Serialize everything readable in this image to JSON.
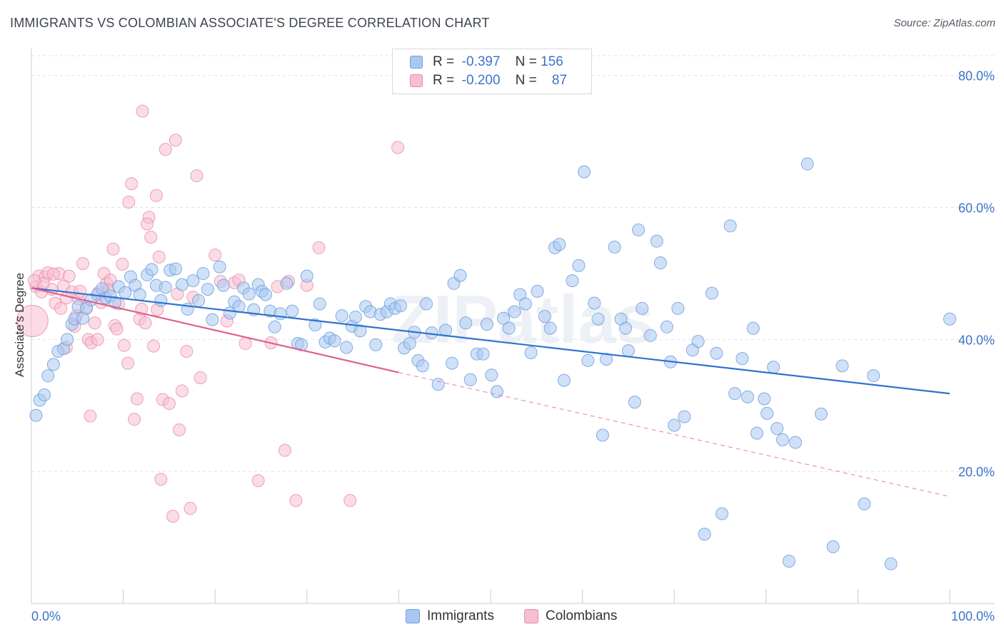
{
  "header": {
    "title": "IMMIGRANTS VS COLOMBIAN ASSOCIATE'S DEGREE CORRELATION CHART",
    "source": "Source: ZipAtlas.com"
  },
  "watermark": "ZIPatlas",
  "legend": {
    "rows": [
      {
        "r_label": "R =",
        "r_value": "-0.397",
        "n_label": "N =",
        "n_value": "156",
        "color": "#a9c8f0",
        "border": "#6f9fdf"
      },
      {
        "r_label": "R =",
        "r_value": "-0.200",
        "n_label": "N =",
        "n_value": "87",
        "color": "#f7bfd0",
        "border": "#e88aa8"
      }
    ]
  },
  "colors": {
    "immigrants_fill": "#a9c8f0",
    "immigrants_stroke": "#6f9fdf",
    "immigrants_line": "#2f72d0",
    "colombians_fill": "#f7bfd0",
    "colombians_stroke": "#e88aa8",
    "colombians_line": "#e0608e",
    "axis_text": "#3c74c9",
    "grid": "#dfe2e6"
  },
  "chart_data": {
    "type": "scatter",
    "title": "IMMIGRANTS VS COLOMBIAN ASSOCIATE'S DEGREE CORRELATION CHART",
    "xlabel": "",
    "ylabel": "Associate's Degree",
    "xlim": [
      0,
      100
    ],
    "ylim": [
      0,
      83
    ],
    "x_tick_labels": [
      "0.0%",
      "100.0%"
    ],
    "y_ticks": [
      20,
      40,
      60,
      80
    ],
    "y_tick_labels": [
      "20.0%",
      "40.0%",
      "60.0%",
      "80.0%"
    ],
    "grid": "horizontal dashed",
    "legend_position": "top-center and bottom",
    "series": [
      {
        "name": "Immigrants",
        "r": -0.397,
        "n": 156,
        "trend": {
          "x": [
            0,
            100
          ],
          "y": [
            47.8,
            31.8
          ]
        },
        "points": [
          [
            0.5,
            28.5
          ],
          [
            0.9,
            30.8
          ],
          [
            1.4,
            31.6
          ],
          [
            1.8,
            34.5
          ],
          [
            2.4,
            36.2
          ],
          [
            2.9,
            38.2
          ],
          [
            3.5,
            38.6
          ],
          [
            3.9,
            40.0
          ],
          [
            4.4,
            42.3
          ],
          [
            4.7,
            43.1
          ],
          [
            5.1,
            45.0
          ],
          [
            5.6,
            43.2
          ],
          [
            6.0,
            44.7
          ],
          [
            6.5,
            46.0
          ],
          [
            7.2,
            46.8
          ],
          [
            7.7,
            47.7
          ],
          [
            8.1,
            46.3
          ],
          [
            8.6,
            46.6
          ],
          [
            9.1,
            45.6
          ],
          [
            9.5,
            48.0
          ],
          [
            10.2,
            47.1
          ],
          [
            10.8,
            49.5
          ],
          [
            11.3,
            48.2
          ],
          [
            11.8,
            46.8
          ],
          [
            12.6,
            49.8
          ],
          [
            13.1,
            50.6
          ],
          [
            13.6,
            48.2
          ],
          [
            14.1,
            45.9
          ],
          [
            14.6,
            47.9
          ],
          [
            15.1,
            50.5
          ],
          [
            15.7,
            50.7
          ],
          [
            16.4,
            48.3
          ],
          [
            17.0,
            44.6
          ],
          [
            17.6,
            48.9
          ],
          [
            18.2,
            45.9
          ],
          [
            18.7,
            50.0
          ],
          [
            19.2,
            47.6
          ],
          [
            19.7,
            43.0
          ],
          [
            20.5,
            51.0
          ],
          [
            20.9,
            48.2
          ],
          [
            21.6,
            44.0
          ],
          [
            22.1,
            45.7
          ],
          [
            22.6,
            45.0
          ],
          [
            23.1,
            47.8
          ],
          [
            23.7,
            46.9
          ],
          [
            24.2,
            44.5
          ],
          [
            24.7,
            48.3
          ],
          [
            25.1,
            47.3
          ],
          [
            25.5,
            46.8
          ],
          [
            26.0,
            44.3
          ],
          [
            26.5,
            41.9
          ],
          [
            27.1,
            43.9
          ],
          [
            27.8,
            48.5
          ],
          [
            28.4,
            44.3
          ],
          [
            29.0,
            39.4
          ],
          [
            29.4,
            39.2
          ],
          [
            30.0,
            49.6
          ],
          [
            30.9,
            42.2
          ],
          [
            31.4,
            45.4
          ],
          [
            32.0,
            39.6
          ],
          [
            32.5,
            40.2
          ],
          [
            33.0,
            39.8
          ],
          [
            33.8,
            43.6
          ],
          [
            34.3,
            38.8
          ],
          [
            34.9,
            42.0
          ],
          [
            35.3,
            43.4
          ],
          [
            35.8,
            41.3
          ],
          [
            36.4,
            45.0
          ],
          [
            36.9,
            44.2
          ],
          [
            37.5,
            39.2
          ],
          [
            38.0,
            43.8
          ],
          [
            38.7,
            44.2
          ],
          [
            39.1,
            45.4
          ],
          [
            39.6,
            44.7
          ],
          [
            40.2,
            45.1
          ],
          [
            40.6,
            38.7
          ],
          [
            41.2,
            39.4
          ],
          [
            41.7,
            41.1
          ],
          [
            42.1,
            36.8
          ],
          [
            42.6,
            36.0
          ],
          [
            43.0,
            45.4
          ],
          [
            43.6,
            41.0
          ],
          [
            44.3,
            33.2
          ],
          [
            45.1,
            41.4
          ],
          [
            45.8,
            36.4
          ],
          [
            46.0,
            48.5
          ],
          [
            46.7,
            49.7
          ],
          [
            47.3,
            42.5
          ],
          [
            47.8,
            33.9
          ],
          [
            48.5,
            37.8
          ],
          [
            49.2,
            37.8
          ],
          [
            49.6,
            42.3
          ],
          [
            50.1,
            34.6
          ],
          [
            50.7,
            32.1
          ],
          [
            51.4,
            43.2
          ],
          [
            52.0,
            41.7
          ],
          [
            52.6,
            44.2
          ],
          [
            53.2,
            46.8
          ],
          [
            53.8,
            45.4
          ],
          [
            54.4,
            38.0
          ],
          [
            55.1,
            47.3
          ],
          [
            55.9,
            43.5
          ],
          [
            56.5,
            41.7
          ],
          [
            57.0,
            53.9
          ],
          [
            57.5,
            54.4
          ],
          [
            58.0,
            33.8
          ],
          [
            58.9,
            48.9
          ],
          [
            59.6,
            51.2
          ],
          [
            60.2,
            65.4
          ],
          [
            60.6,
            36.8
          ],
          [
            61.3,
            45.5
          ],
          [
            61.7,
            43.1
          ],
          [
            62.2,
            25.5
          ],
          [
            62.6,
            37.0
          ],
          [
            63.5,
            54.0
          ],
          [
            64.2,
            43.1
          ],
          [
            64.7,
            41.7
          ],
          [
            65.0,
            38.3
          ],
          [
            65.7,
            30.5
          ],
          [
            66.1,
            56.6
          ],
          [
            66.5,
            44.7
          ],
          [
            67.4,
            40.6
          ],
          [
            68.1,
            54.9
          ],
          [
            68.5,
            51.6
          ],
          [
            69.2,
            41.9
          ],
          [
            69.6,
            36.6
          ],
          [
            70.0,
            27.0
          ],
          [
            70.4,
            44.7
          ],
          [
            71.1,
            28.3
          ],
          [
            72.0,
            38.4
          ],
          [
            72.6,
            39.7
          ],
          [
            73.3,
            10.5
          ],
          [
            74.1,
            47.0
          ],
          [
            74.6,
            37.9
          ],
          [
            75.2,
            13.6
          ],
          [
            76.1,
            57.2
          ],
          [
            76.6,
            31.8
          ],
          [
            77.4,
            37.1
          ],
          [
            78.0,
            31.3
          ],
          [
            78.6,
            41.7
          ],
          [
            79.0,
            25.8
          ],
          [
            79.8,
            31.0
          ],
          [
            80.1,
            28.8
          ],
          [
            80.8,
            35.8
          ],
          [
            81.2,
            26.5
          ],
          [
            81.8,
            24.8
          ],
          [
            82.5,
            6.4
          ],
          [
            83.2,
            24.4
          ],
          [
            84.5,
            66.6
          ],
          [
            86.0,
            28.7
          ],
          [
            87.3,
            8.6
          ],
          [
            88.3,
            36.0
          ],
          [
            90.7,
            15.1
          ],
          [
            91.7,
            34.5
          ],
          [
            93.6,
            6.0
          ],
          [
            100.0,
            43.1
          ]
        ]
      },
      {
        "name": "Colombians",
        "r": -0.2,
        "n": 87,
        "trend_solid": {
          "x": [
            0,
            40
          ],
          "y": [
            47.8,
            35.0
          ]
        },
        "trend_dashed": {
          "x": [
            40,
            100
          ],
          "y": [
            35.0,
            16.2
          ]
        },
        "points": [
          [
            0.1,
            42.8
          ],
          [
            0.5,
            48.0
          ],
          [
            0.8,
            49.6
          ],
          [
            1.1,
            47.2
          ],
          [
            1.5,
            49.5
          ],
          [
            1.8,
            50.1
          ],
          [
            2.2,
            47.6
          ],
          [
            2.6,
            45.5
          ],
          [
            3.0,
            50.0
          ],
          [
            3.2,
            44.7
          ],
          [
            3.5,
            48.1
          ],
          [
            3.8,
            46.3
          ],
          [
            4.1,
            49.6
          ],
          [
            4.4,
            47.2
          ],
          [
            4.7,
            42.0
          ],
          [
            5.1,
            46.2
          ],
          [
            5.6,
            51.5
          ],
          [
            6.0,
            44.9
          ],
          [
            6.2,
            40.0
          ],
          [
            6.5,
            39.5
          ],
          [
            6.9,
            42.5
          ],
          [
            7.3,
            47.1
          ],
          [
            7.6,
            45.6
          ],
          [
            7.9,
            50.0
          ],
          [
            8.2,
            48.5
          ],
          [
            8.6,
            49.0
          ],
          [
            8.9,
            53.7
          ],
          [
            9.1,
            42.1
          ],
          [
            9.5,
            45.4
          ],
          [
            9.9,
            51.4
          ],
          [
            10.1,
            39.1
          ],
          [
            10.5,
            36.4
          ],
          [
            10.9,
            63.6
          ],
          [
            10.6,
            60.8
          ],
          [
            11.2,
            27.9
          ],
          [
            11.5,
            31.0
          ],
          [
            11.8,
            43.1
          ],
          [
            12.1,
            74.6
          ],
          [
            12.4,
            42.5
          ],
          [
            12.8,
            58.5
          ],
          [
            12.6,
            57.5
          ],
          [
            13.0,
            55.5
          ],
          [
            13.3,
            39.0
          ],
          [
            13.6,
            61.8
          ],
          [
            13.9,
            52.5
          ],
          [
            14.1,
            18.8
          ],
          [
            14.3,
            30.9
          ],
          [
            14.6,
            68.8
          ],
          [
            15.0,
            30.3
          ],
          [
            15.4,
            13.2
          ],
          [
            15.7,
            70.2
          ],
          [
            15.9,
            46.9
          ],
          [
            16.1,
            26.3
          ],
          [
            16.4,
            32.2
          ],
          [
            16.9,
            38.2
          ],
          [
            17.3,
            14.4
          ],
          [
            17.6,
            46.4
          ],
          [
            18.0,
            64.8
          ],
          [
            18.4,
            34.2
          ],
          [
            20.0,
            52.8
          ],
          [
            20.6,
            48.8
          ],
          [
            21.3,
            42.8
          ],
          [
            22.1,
            48.6
          ],
          [
            22.6,
            49.0
          ],
          [
            23.3,
            39.4
          ],
          [
            24.7,
            18.6
          ],
          [
            26.1,
            39.5
          ],
          [
            26.8,
            48.0
          ],
          [
            27.6,
            23.2
          ],
          [
            28.0,
            48.8
          ],
          [
            28.8,
            15.6
          ],
          [
            30.0,
            48.2
          ],
          [
            31.3,
            53.9
          ],
          [
            34.7,
            15.6
          ],
          [
            39.9,
            69.1
          ],
          [
            2.4,
            49.9
          ],
          [
            3.8,
            38.8
          ],
          [
            6.4,
            28.4
          ],
          [
            7.2,
            40.0
          ],
          [
            4.9,
            43.6
          ],
          [
            1.3,
            48.5
          ],
          [
            0.3,
            48.9
          ],
          [
            9.3,
            41.6
          ],
          [
            5.3,
            47.3
          ],
          [
            12.0,
            44.6
          ],
          [
            8.4,
            47.5
          ],
          [
            13.7,
            44.5
          ]
        ]
      }
    ]
  },
  "bottom_legend": {
    "items": [
      {
        "label": "Immigrants"
      },
      {
        "label": "Colombians"
      }
    ]
  }
}
